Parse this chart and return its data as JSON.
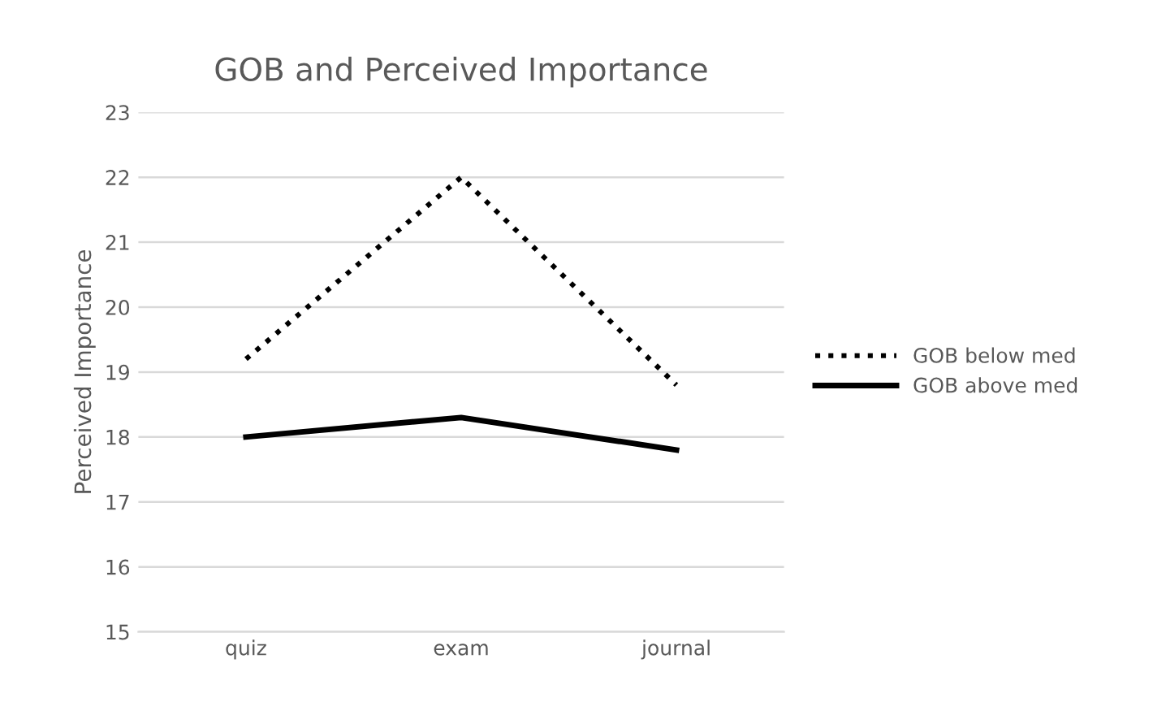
{
  "chart_data": {
    "type": "line",
    "title": "GOB and Perceived Importance",
    "ylabel": "Perceived Importance",
    "categories": [
      "quiz",
      "exam",
      "journal"
    ],
    "series": [
      {
        "name": "GOB below med",
        "color": "#000000",
        "values": [
          19.2,
          22.0,
          18.8
        ],
        "line_style": "dotted"
      },
      {
        "name": "GOB above med",
        "color": "#000000",
        "values": [
          18.0,
          18.3,
          17.8
        ],
        "line_style": "solid"
      }
    ],
    "ylim": [
      15,
      23
    ],
    "yticks": [
      15,
      16,
      17,
      18,
      19,
      20,
      21,
      22,
      23
    ],
    "grid": "y",
    "legend": "right",
    "marker": "none"
  }
}
